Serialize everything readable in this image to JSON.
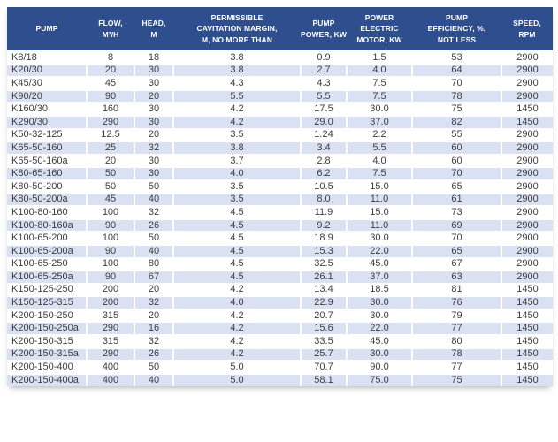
{
  "colors": {
    "header_bg": "#2e4e8d",
    "band_bg": "#d9e1f2",
    "row_bg": "#ffffff",
    "header_text": "#ffffff",
    "body_text": "#3d3d3d"
  },
  "table": {
    "columns": [
      {
        "key": "pump",
        "label": "PUMP"
      },
      {
        "key": "flow",
        "label": "FLOW,\nM³/H"
      },
      {
        "key": "head",
        "label": "HEAD,\nM"
      },
      {
        "key": "cavitation_margin",
        "label": "PERMISSIBLE\nCAVITATION MARGIN,\nM, NO MORE THAN"
      },
      {
        "key": "pump_power",
        "label": "PUMP\nPOWER, KW"
      },
      {
        "key": "motor_power",
        "label": "POWER\nELECTRIC\nMOTOR, KW"
      },
      {
        "key": "efficiency",
        "label": "PUMP\nEFFICIENCY, %,\nNOT LESS"
      },
      {
        "key": "speed",
        "label": "SPEED,\nRPM"
      }
    ],
    "rows": [
      [
        "K8/18",
        "8",
        "18",
        "3.8",
        "0.9",
        "1.5",
        "53",
        "2900"
      ],
      [
        "K20/30",
        "20",
        "30",
        "3.8",
        "2.7",
        "4.0",
        "64",
        "2900"
      ],
      [
        "K45/30",
        "45",
        "30",
        "4.3",
        "4.3",
        "7.5",
        "70",
        "2900"
      ],
      [
        "K90/20",
        "90",
        "20",
        "5.5",
        "5.5",
        "7.5",
        "78",
        "2900"
      ],
      [
        "K160/30",
        "160",
        "30",
        "4.2",
        "17.5",
        "30.0",
        "75",
        "1450"
      ],
      [
        "K290/30",
        "290",
        "30",
        "4.2",
        "29.0",
        "37.0",
        "82",
        "1450"
      ],
      [
        "K50-32-125",
        "12.5",
        "20",
        "3.5",
        "1.24",
        "2.2",
        "55",
        "2900"
      ],
      [
        "K65-50-160",
        "25",
        "32",
        "3.8",
        "3.4",
        "5.5",
        "60",
        "2900"
      ],
      [
        "K65-50-160a",
        "20",
        "30",
        "3.7",
        "2.8",
        "4.0",
        "60",
        "2900"
      ],
      [
        "K80-65-160",
        "50",
        "30",
        "4.0",
        "6.2",
        "7.5",
        "70",
        "2900"
      ],
      [
        "K80-50-200",
        "50",
        "50",
        "3.5",
        "10.5",
        "15.0",
        "65",
        "2900"
      ],
      [
        "K80-50-200a",
        "45",
        "40",
        "3.5",
        "8.0",
        "11.0",
        "61",
        "2900"
      ],
      [
        "K100-80-160",
        "100",
        "32",
        "4.5",
        "11.9",
        "15.0",
        "73",
        "2900"
      ],
      [
        "K100-80-160a",
        "90",
        "26",
        "4.5",
        "9.2",
        "11.0",
        "69",
        "2900"
      ],
      [
        "K100-65-200",
        "100",
        "50",
        "4.5",
        "18.9",
        "30.0",
        "70",
        "2900"
      ],
      [
        "K100-65-200a",
        "90",
        "40",
        "4.5",
        "15.3",
        "22.0",
        "65",
        "2900"
      ],
      [
        "K100-65-250",
        "100",
        "80",
        "4.5",
        "32.5",
        "45.0",
        "67",
        "2900"
      ],
      [
        "K100-65-250a",
        "90",
        "67",
        "4.5",
        "26.1",
        "37.0",
        "63",
        "2900"
      ],
      [
        "K150-125-250",
        "200",
        "20",
        "4.2",
        "13.4",
        "18.5",
        "81",
        "1450"
      ],
      [
        "K150-125-315",
        "200",
        "32",
        "4.0",
        "22.9",
        "30.0",
        "76",
        "1450"
      ],
      [
        "K200-150-250",
        "315",
        "20",
        "4.2",
        "20.7",
        "30.0",
        "79",
        "1450"
      ],
      [
        "K200-150-250a",
        "290",
        "16",
        "4.2",
        "15.6",
        "22.0",
        "77",
        "1450"
      ],
      [
        "K200-150-315",
        "315",
        "32",
        "4.2",
        "33.5",
        "45.0",
        "80",
        "1450"
      ],
      [
        "K200-150-315a",
        "290",
        "26",
        "4.2",
        "25.7",
        "30.0",
        "78",
        "1450"
      ],
      [
        "K200-150-400",
        "400",
        "50",
        "5.0",
        "70.7",
        "90.0",
        "77",
        "1450"
      ],
      [
        "K200-150-400a",
        "400",
        "40",
        "5.0",
        "58.1",
        "75.0",
        "75",
        "1450"
      ]
    ]
  }
}
